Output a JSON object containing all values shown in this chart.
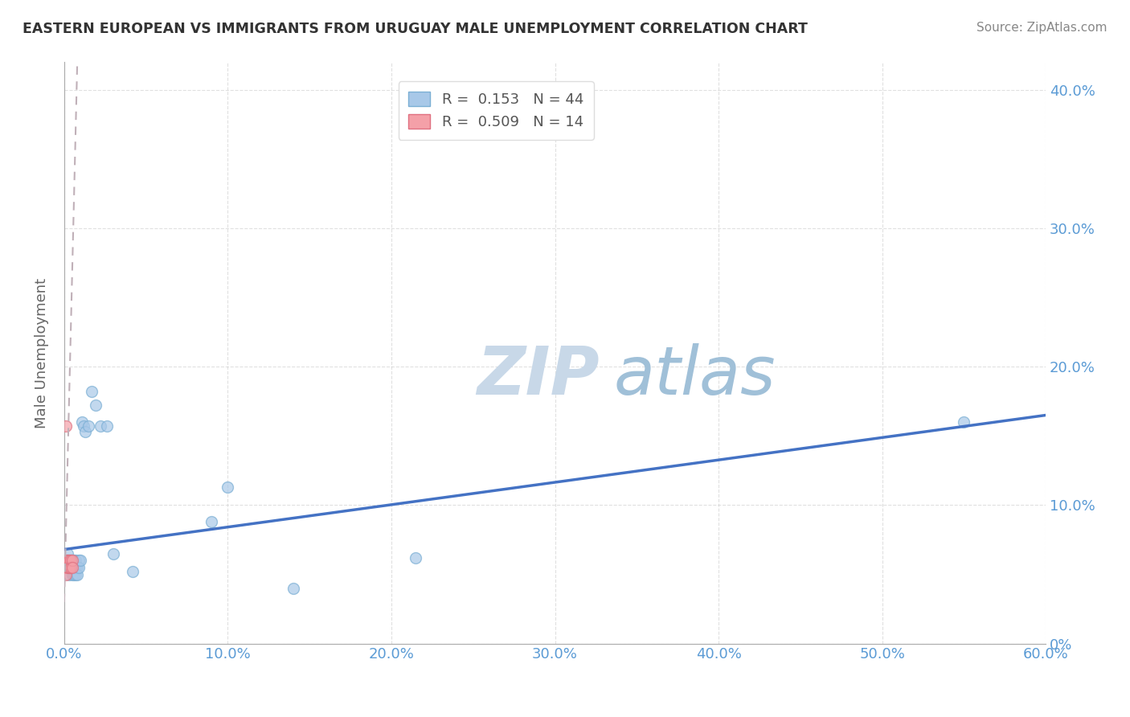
{
  "title": "EASTERN EUROPEAN VS IMMIGRANTS FROM URUGUAY MALE UNEMPLOYMENT CORRELATION CHART",
  "source": "Source: ZipAtlas.com",
  "ylabel": "Male Unemployment",
  "xlim": [
    0.0,
    0.6
  ],
  "ylim": [
    0.0,
    0.42
  ],
  "xticks": [
    0.0,
    0.1,
    0.2,
    0.3,
    0.4,
    0.5,
    0.6
  ],
  "yticks": [
    0.0,
    0.1,
    0.2,
    0.3,
    0.4
  ],
  "ytick_labels_right": [
    "0%",
    "10.0%",
    "20.0%",
    "30.0%",
    "40.0%"
  ],
  "xtick_labels": [
    "0.0%",
    "10.0%",
    "20.0%",
    "30.0%",
    "40.0%",
    "50.0%",
    "60.0%"
  ],
  "color_blue": "#A8C8E8",
  "color_blue_edge": "#7BAFD4",
  "color_pink": "#F4A0A8",
  "color_pink_edge": "#E07080",
  "color_trendline_blue": "#4472C4",
  "color_trendline_pink": "#C0B0B8",
  "color_axis_labels": "#5B9BD5",
  "watermark_zip_color": "#C8D8E8",
  "watermark_atlas_color": "#A0C0D8",
  "legend_R1": "R =  0.153",
  "legend_N1": "N = 44",
  "legend_R2": "R =  0.509",
  "legend_N2": "N = 14",
  "eastern_european_x": [
    0.001,
    0.001,
    0.002,
    0.002,
    0.002,
    0.003,
    0.003,
    0.003,
    0.003,
    0.004,
    0.004,
    0.004,
    0.004,
    0.005,
    0.005,
    0.005,
    0.005,
    0.005,
    0.006,
    0.006,
    0.006,
    0.007,
    0.007,
    0.007,
    0.008,
    0.008,
    0.009,
    0.009,
    0.01,
    0.011,
    0.012,
    0.013,
    0.015,
    0.017,
    0.019,
    0.022,
    0.026,
    0.03,
    0.042,
    0.09,
    0.1,
    0.14,
    0.215,
    0.55
  ],
  "eastern_european_y": [
    0.06,
    0.055,
    0.065,
    0.06,
    0.055,
    0.06,
    0.055,
    0.06,
    0.05,
    0.055,
    0.06,
    0.055,
    0.06,
    0.06,
    0.055,
    0.06,
    0.055,
    0.05,
    0.06,
    0.055,
    0.05,
    0.06,
    0.055,
    0.05,
    0.055,
    0.05,
    0.06,
    0.055,
    0.06,
    0.16,
    0.157,
    0.153,
    0.157,
    0.182,
    0.172,
    0.157,
    0.157,
    0.065,
    0.052,
    0.088,
    0.113,
    0.04,
    0.062,
    0.16
  ],
  "uruguay_x": [
    0.001,
    0.001,
    0.001,
    0.002,
    0.002,
    0.002,
    0.003,
    0.003,
    0.003,
    0.004,
    0.004,
    0.005,
    0.005,
    0.001
  ],
  "uruguay_y": [
    0.06,
    0.055,
    0.05,
    0.06,
    0.055,
    0.06,
    0.06,
    0.055,
    0.055,
    0.06,
    0.055,
    0.06,
    0.055,
    0.157
  ],
  "trendline_blue_x0": 0.0,
  "trendline_blue_y0": 0.068,
  "trendline_blue_x1": 0.6,
  "trendline_blue_y1": 0.165,
  "trendline_pink_x0": 0.0,
  "trendline_pink_y0": 0.03,
  "trendline_pink_x1": 0.008,
  "trendline_pink_y1": 0.42,
  "background_color": "#FFFFFF"
}
